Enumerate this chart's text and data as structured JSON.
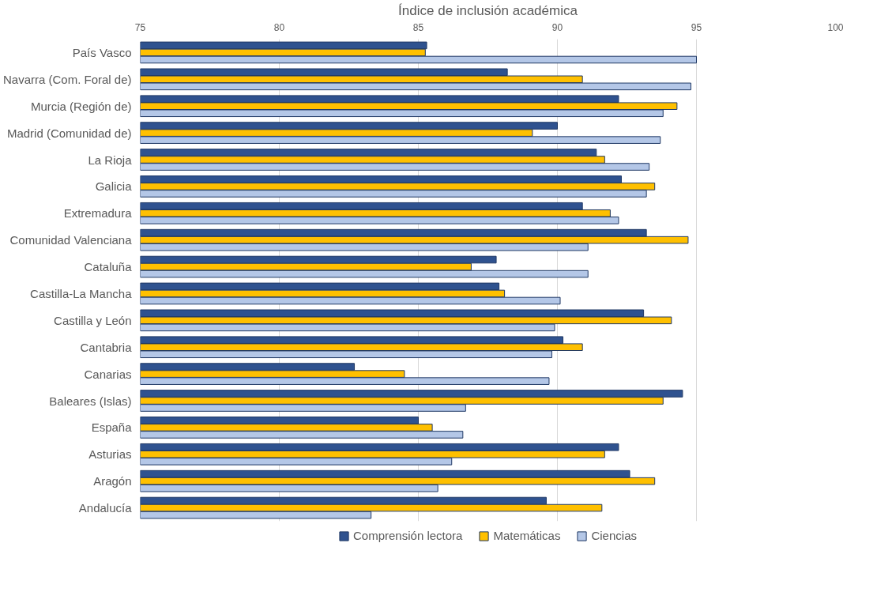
{
  "chart_data": {
    "type": "bar",
    "orientation": "horizontal",
    "xlabel": "Índice de inclusión académica",
    "categories": [
      "País Vasco",
      "Navarra (Com. Foral de)",
      "Murcia (Región de)",
      "Madrid (Comunidad de)",
      "La Rioja",
      "Galicia",
      "Extremadura",
      "Comunidad Valenciana",
      "Cataluña",
      "Castilla-La Mancha",
      "Castilla y León",
      "Cantabria",
      "Canarias",
      "Baleares (Islas)",
      "España",
      "Asturias",
      "Aragón",
      "Andalucía"
    ],
    "series": [
      {
        "name": "Comprensión lectora",
        "color": "#2f528f",
        "values": [
          85.3,
          88.2,
          92.2,
          90.0,
          91.4,
          92.3,
          90.9,
          93.2,
          87.8,
          87.9,
          93.1,
          90.2,
          82.7,
          94.5,
          85.0,
          92.2,
          92.6,
          89.6
        ]
      },
      {
        "name": "Matemáticas",
        "color": "#ffc000",
        "values": [
          85.25,
          90.9,
          94.3,
          89.1,
          91.7,
          93.5,
          91.9,
          94.7,
          86.9,
          88.1,
          94.1,
          90.9,
          84.5,
          93.8,
          85.5,
          91.7,
          93.5,
          91.6
        ]
      },
      {
        "name": "Ciencias",
        "color": "#b4c7e7",
        "values": [
          95.0,
          94.8,
          93.8,
          93.7,
          93.3,
          93.2,
          92.2,
          91.1,
          91.1,
          90.1,
          89.9,
          89.8,
          89.7,
          86.7,
          86.6,
          86.2,
          85.7,
          83.3
        ]
      }
    ],
    "xlim": [
      75,
      100
    ],
    "xticks": [
      75,
      80,
      85,
      90,
      95,
      100
    ],
    "grid": "x",
    "legend": "bottom"
  }
}
